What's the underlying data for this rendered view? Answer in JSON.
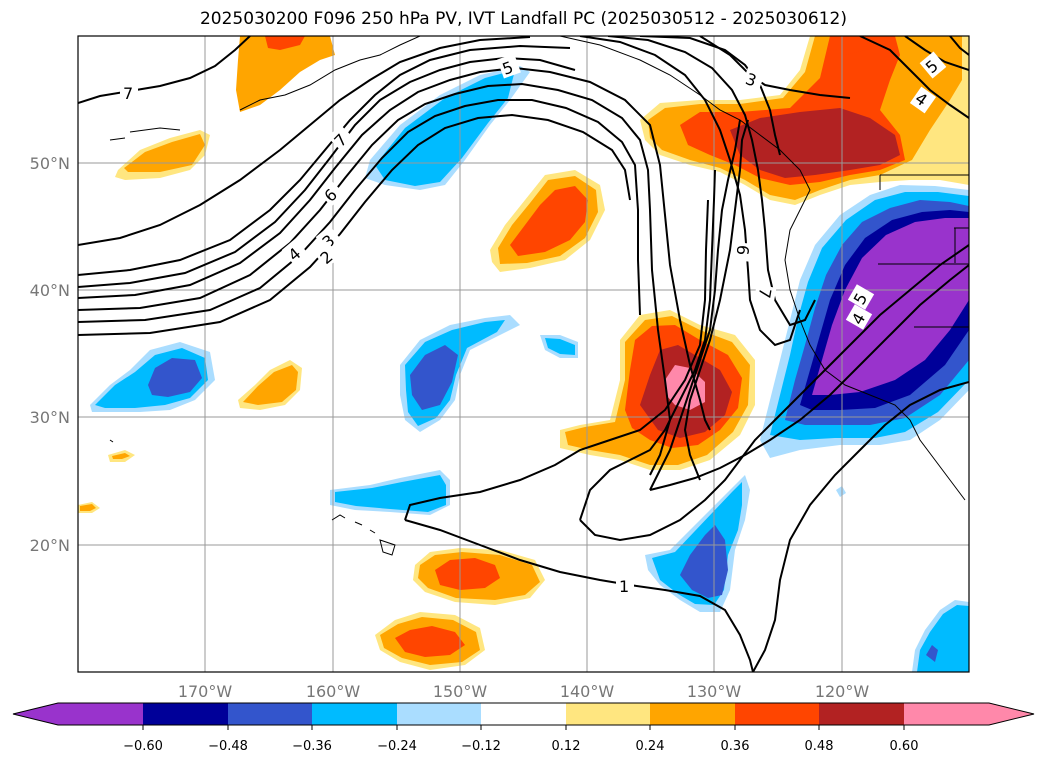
{
  "title": "2025030200 F096 250 hPa PV, IVT Landfall PC (2025030512 - 2025030612)",
  "map": {
    "lat_labels": [
      "50°N",
      "40°N",
      "30°N",
      "20°N"
    ],
    "lon_labels": [
      "170°W",
      "160°W",
      "150°W",
      "140°W",
      "130°W",
      "120°W"
    ],
    "lon_range": [
      -180,
      -110
    ],
    "lat_range": [
      10,
      60
    ],
    "gridlines": true,
    "contour_labels": [
      "7",
      "5",
      "3",
      "4",
      "5",
      "7",
      "6",
      "4",
      "3",
      "2",
      "6",
      "7",
      "5",
      "4",
      "1"
    ]
  },
  "colorbar": {
    "ticks": [
      "−0.60",
      "−0.48",
      "−0.36",
      "−0.24",
      "−0.12",
      "0.12",
      "0.24",
      "0.36",
      "0.48",
      "0.60"
    ],
    "colors": [
      "#9933cc",
      "#000099",
      "#3355cc",
      "#00bbff",
      "#aaddff",
      "#ffffff",
      "#ffe680",
      "#ffa500",
      "#ff4500",
      "#b22222",
      "#ff88aa"
    ],
    "extend": "both"
  }
}
